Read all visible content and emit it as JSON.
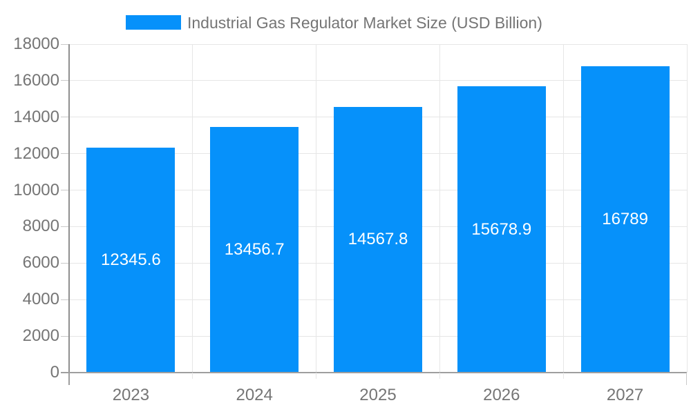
{
  "legend": {
    "label": "Industrial Gas Regulator Market Size (USD Billion)"
  },
  "chart_data": {
    "type": "bar",
    "title": "Industrial Gas Regulator Market Size (USD Billion)",
    "categories": [
      "2023",
      "2024",
      "2025",
      "2026",
      "2027"
    ],
    "values": [
      12345.6,
      13456.7,
      14567.8,
      15678.9,
      16789
    ],
    "value_labels": [
      "12345.6",
      "13456.7",
      "14567.8",
      "15678.9",
      "16789"
    ],
    "xlabel": "",
    "ylabel": "",
    "ylim": [
      0,
      18000
    ],
    "yticks": [
      0,
      2000,
      4000,
      6000,
      8000,
      10000,
      12000,
      14000,
      16000,
      18000
    ],
    "grid": true,
    "legend_position": "top"
  },
  "colors": {
    "bar": "#0691fa",
    "axis_text": "#757575",
    "bar_label": "#ffffff",
    "grid_line": "#e6e6e6",
    "axis_line": "#9e9e9e",
    "tick": "#c9c9c9",
    "background": "#ffffff"
  }
}
